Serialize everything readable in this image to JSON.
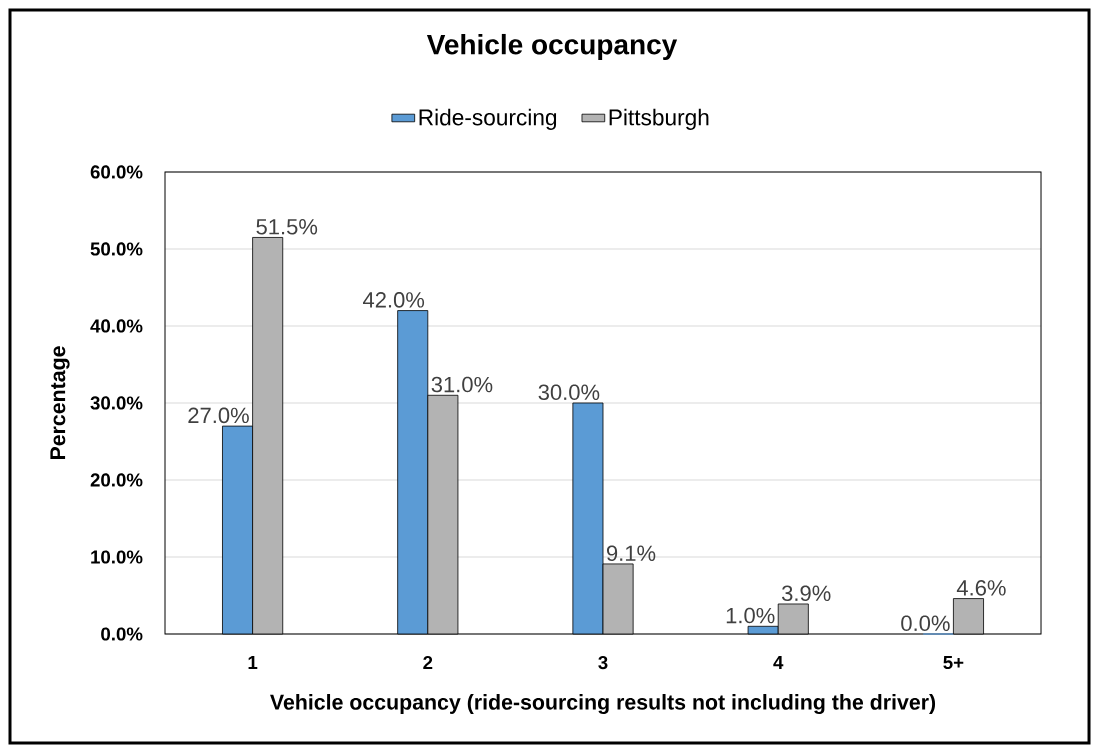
{
  "chart_data": {
    "type": "bar",
    "title": "Vehicle occupancy",
    "xlabel": "Vehicle occupancy (ride-sourcing results not including the driver)",
    "ylabel": "Percentage",
    "categories": [
      "1",
      "2",
      "3",
      "4",
      "5+"
    ],
    "series": [
      {
        "name": "Ride-sourcing",
        "color": "#5b9bd5",
        "values": [
          27.0,
          42.0,
          30.0,
          1.0,
          0.0
        ],
        "value_labels": [
          "27.0%",
          "42.0%",
          "30.0%",
          "1.0%",
          "0.0%"
        ]
      },
      {
        "name": "Pittsburgh",
        "color": "#b3b3b3",
        "values": [
          51.5,
          31.0,
          9.1,
          3.9,
          4.6
        ],
        "value_labels": [
          "51.5%",
          "31.0%",
          "9.1%",
          "3.9%",
          "4.6%"
        ]
      }
    ],
    "ylim": [
      0,
      60
    ],
    "yticks": [
      {
        "value": 0,
        "label": "0.0%"
      },
      {
        "value": 10,
        "label": "10.0%"
      },
      {
        "value": 20,
        "label": "20.0%"
      },
      {
        "value": 30,
        "label": "30.0%"
      },
      {
        "value": 40,
        "label": "40.0%"
      },
      {
        "value": 50,
        "label": "50.0%"
      },
      {
        "value": 60,
        "label": "60.0%"
      }
    ],
    "grid": "y",
    "legend": "top"
  }
}
